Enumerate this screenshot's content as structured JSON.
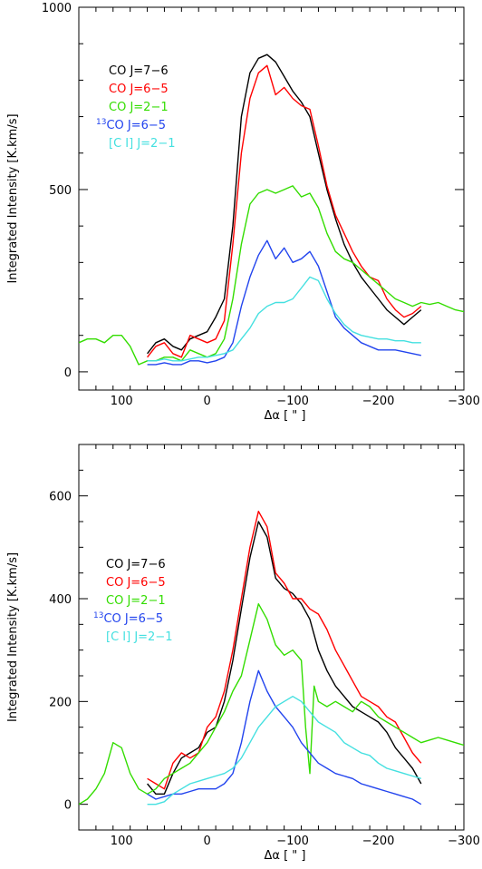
{
  "chart_data": [
    {
      "type": "line",
      "xlabel": "Δα [ \" ]",
      "ylabel": "Integrated Intensity [K.km/s]",
      "xlim": [
        150,
        -300
      ],
      "ylim": [
        -50,
        1000
      ],
      "x_ticks": [
        100,
        0,
        -100,
        -200,
        -300
      ],
      "x_tick_labels": [
        "100",
        "0",
        "−100",
        "−200",
        "−300"
      ],
      "y_ticks": [
        0,
        500,
        1000
      ],
      "y_tick_labels": [
        "0",
        "500",
        "1000"
      ],
      "legend_placement": "top-left",
      "series": [
        {
          "name": "CO J=7−6",
          "color": "#000000",
          "x": [
            70,
            60,
            50,
            40,
            30,
            20,
            10,
            0,
            -10,
            -20,
            -30,
            -40,
            -50,
            -60,
            -70,
            -80,
            -90,
            -100,
            -110,
            -120,
            -130,
            -140,
            -150,
            -160,
            -170,
            -180,
            -190,
            -200,
            -210,
            -220,
            -230,
            -240,
            -250
          ],
          "y": [
            50,
            80,
            90,
            70,
            60,
            90,
            100,
            110,
            150,
            200,
            400,
            700,
            820,
            860,
            870,
            850,
            810,
            770,
            740,
            700,
            600,
            500,
            420,
            350,
            300,
            260,
            230,
            200,
            170,
            150,
            130,
            150,
            170
          ]
        },
        {
          "name": "CO J=6−5",
          "color": "#ff0000",
          "x": [
            70,
            60,
            50,
            40,
            30,
            20,
            10,
            0,
            -10,
            -20,
            -30,
            -40,
            -50,
            -60,
            -70,
            -80,
            -90,
            -100,
            -110,
            -120,
            -130,
            -140,
            -150,
            -160,
            -170,
            -180,
            -190,
            -200,
            -210,
            -220,
            -230,
            -240,
            -250
          ],
          "y": [
            40,
            70,
            80,
            50,
            40,
            100,
            90,
            80,
            90,
            140,
            350,
            600,
            750,
            820,
            840,
            760,
            780,
            750,
            730,
            720,
            620,
            510,
            430,
            380,
            330,
            290,
            260,
            250,
            200,
            170,
            150,
            160,
            180
          ]
        },
        {
          "name": "CO J=2−1",
          "color": "#33dd00",
          "x": [
            150,
            140,
            130,
            120,
            110,
            100,
            90,
            80,
            70,
            60,
            50,
            40,
            30,
            20,
            10,
            0,
            -10,
            -20,
            -30,
            -40,
            -50,
            -60,
            -70,
            -80,
            -90,
            -100,
            -110,
            -120,
            -130,
            -140,
            -150,
            -160,
            -170,
            -180,
            -190,
            -200,
            -210,
            -220,
            -230,
            -240,
            -250,
            -260,
            -270,
            -280,
            -290,
            -300
          ],
          "y": [
            80,
            90,
            90,
            80,
            100,
            100,
            70,
            20,
            30,
            30,
            40,
            40,
            30,
            60,
            50,
            40,
            50,
            90,
            200,
            350,
            460,
            490,
            500,
            490,
            500,
            510,
            480,
            490,
            450,
            380,
            330,
            310,
            300,
            280,
            260,
            240,
            220,
            200,
            190,
            180,
            190,
            185,
            190,
            180,
            170,
            165
          ]
        },
        {
          "name": "13CO J=6−5",
          "color": "#2244ee",
          "x": [
            70,
            60,
            50,
            40,
            30,
            20,
            10,
            0,
            -10,
            -20,
            -30,
            -40,
            -50,
            -60,
            -70,
            -80,
            -90,
            -100,
            -110,
            -120,
            -130,
            -140,
            -150,
            -160,
            -170,
            -180,
            -190,
            -200,
            -210,
            -220,
            -230,
            -240,
            -250
          ],
          "y": [
            20,
            20,
            25,
            20,
            20,
            30,
            30,
            25,
            30,
            40,
            80,
            180,
            260,
            320,
            360,
            310,
            340,
            300,
            310,
            330,
            290,
            220,
            150,
            120,
            100,
            80,
            70,
            60,
            60,
            60,
            55,
            50,
            45
          ]
        },
        {
          "name": "[C I] J=2−1",
          "color": "#44e0e0",
          "x": [
            70,
            60,
            50,
            40,
            30,
            20,
            10,
            0,
            -10,
            -20,
            -30,
            -40,
            -50,
            -60,
            -70,
            -80,
            -90,
            -100,
            -110,
            -120,
            -130,
            -140,
            -150,
            -160,
            -170,
            -180,
            -190,
            -200,
            -210,
            -220,
            -230,
            -240,
            -250
          ],
          "y": [
            30,
            30,
            35,
            30,
            30,
            35,
            40,
            40,
            45,
            50,
            60,
            90,
            120,
            160,
            180,
            190,
            190,
            200,
            230,
            260,
            250,
            200,
            160,
            130,
            110,
            100,
            95,
            90,
            90,
            85,
            85,
            80,
            80
          ]
        }
      ]
    },
    {
      "type": "line",
      "xlabel": "Δα [ \" ]",
      "ylabel": "Integrated Intensity [K.km/s]",
      "xlim": [
        150,
        -300
      ],
      "ylim": [
        -50,
        700
      ],
      "x_ticks": [
        100,
        0,
        -100,
        -200,
        -300
      ],
      "x_tick_labels": [
        "100",
        "0",
        "−100",
        "−200",
        "−300"
      ],
      "y_ticks": [
        0,
        200,
        400,
        600
      ],
      "y_tick_labels": [
        "0",
        "200",
        "400",
        "600"
      ],
      "legend_placement": "left",
      "series": [
        {
          "name": "CO J=7−6",
          "color": "#000000",
          "x": [
            70,
            60,
            50,
            40,
            30,
            20,
            10,
            0,
            -10,
            -20,
            -30,
            -40,
            -50,
            -60,
            -70,
            -80,
            -90,
            -100,
            -110,
            -120,
            -130,
            -140,
            -150,
            -160,
            -170,
            -180,
            -190,
            -200,
            -210,
            -220,
            -230,
            -240,
            -250
          ],
          "y": [
            40,
            20,
            20,
            60,
            90,
            100,
            110,
            140,
            150,
            200,
            280,
            380,
            480,
            550,
            520,
            440,
            420,
            410,
            390,
            360,
            300,
            260,
            230,
            210,
            190,
            180,
            170,
            160,
            140,
            110,
            90,
            70,
            40
          ]
        },
        {
          "name": "CO J=6−5",
          "color": "#ff0000",
          "x": [
            70,
            60,
            50,
            40,
            30,
            20,
            10,
            0,
            -10,
            -20,
            -30,
            -40,
            -50,
            -60,
            -70,
            -80,
            -90,
            -100,
            -110,
            -120,
            -130,
            -140,
            -150,
            -160,
            -170,
            -180,
            -190,
            -200,
            -210,
            -220,
            -230,
            -240,
            -250
          ],
          "y": [
            50,
            40,
            30,
            80,
            100,
            90,
            100,
            150,
            170,
            220,
            300,
            400,
            500,
            570,
            540,
            450,
            430,
            400,
            400,
            380,
            370,
            340,
            300,
            270,
            240,
            210,
            200,
            190,
            170,
            160,
            130,
            100,
            80
          ]
        },
        {
          "name": "CO J=2−1",
          "color": "#33dd00",
          "x": [
            150,
            140,
            130,
            120,
            110,
            100,
            90,
            80,
            70,
            60,
            50,
            40,
            30,
            20,
            10,
            0,
            -10,
            -20,
            -30,
            -40,
            -50,
            -60,
            -70,
            -80,
            -90,
            -100,
            -110,
            -115,
            -120,
            -125,
            -130,
            -140,
            -150,
            -160,
            -170,
            -180,
            -190,
            -200,
            -210,
            -220,
            -230,
            -240,
            -250,
            -260,
            -270,
            -280,
            -290,
            -300
          ],
          "y": [
            0,
            10,
            30,
            60,
            120,
            110,
            60,
            30,
            20,
            30,
            50,
            60,
            70,
            80,
            100,
            120,
            150,
            180,
            220,
            250,
            320,
            390,
            360,
            310,
            290,
            300,
            280,
            150,
            60,
            230,
            200,
            190,
            200,
            190,
            180,
            200,
            190,
            170,
            160,
            150,
            140,
            130,
            120,
            125,
            130,
            125,
            120,
            115
          ]
        },
        {
          "name": "13CO J=6−5",
          "color": "#2244ee",
          "x": [
            70,
            60,
            50,
            40,
            30,
            20,
            10,
            0,
            -10,
            -20,
            -30,
            -40,
            -50,
            -60,
            -70,
            -80,
            -90,
            -100,
            -110,
            -120,
            -130,
            -140,
            -150,
            -160,
            -170,
            -180,
            -190,
            -200,
            -210,
            -220,
            -230,
            -240,
            -250
          ],
          "y": [
            20,
            10,
            15,
            20,
            20,
            25,
            30,
            30,
            30,
            40,
            60,
            120,
            200,
            260,
            220,
            190,
            170,
            150,
            120,
            100,
            80,
            70,
            60,
            55,
            50,
            40,
            35,
            30,
            25,
            20,
            15,
            10,
            0
          ]
        },
        {
          "name": "[C I] J=2−1",
          "color": "#44e0e0",
          "x": [
            70,
            60,
            50,
            40,
            30,
            20,
            10,
            0,
            -10,
            -20,
            -30,
            -40,
            -50,
            -60,
            -70,
            -80,
            -90,
            -100,
            -110,
            -120,
            -130,
            -140,
            -150,
            -160,
            -170,
            -180,
            -190,
            -200,
            -210,
            -220,
            -230,
            -240,
            -250
          ],
          "y": [
            0,
            0,
            5,
            20,
            30,
            40,
            45,
            50,
            55,
            60,
            70,
            90,
            120,
            150,
            170,
            190,
            200,
            210,
            200,
            180,
            160,
            150,
            140,
            120,
            110,
            100,
            95,
            80,
            70,
            65,
            60,
            55,
            50
          ]
        }
      ]
    }
  ]
}
